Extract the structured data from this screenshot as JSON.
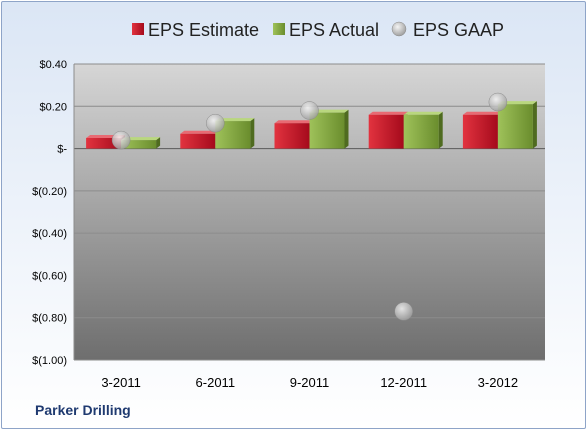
{
  "company": "Parker Drilling",
  "colors": {
    "estimate": "#c8102e",
    "actual": "#7da23c",
    "gaap": "#a8a8a8",
    "plot_top": "#d6d6d6",
    "plot_bottom": "#6e6e6e"
  },
  "chart_data": {
    "type": "bar",
    "categories": [
      "3-2011",
      "6-2011",
      "9-2011",
      "12-2011",
      "3-2012"
    ],
    "series": [
      {
        "name": "EPS Estimate",
        "type": "bar",
        "values": [
          0.05,
          0.07,
          0.12,
          0.16,
          0.16
        ]
      },
      {
        "name": "EPS Actual",
        "type": "bar",
        "values": [
          0.04,
          0.13,
          0.17,
          0.16,
          0.21
        ]
      },
      {
        "name": "EPS GAAP",
        "type": "scatter",
        "values": [
          0.04,
          0.12,
          0.18,
          -0.77,
          0.22
        ]
      }
    ],
    "ylim": [
      -1.0,
      0.4
    ],
    "yticks": [
      {
        "value": 0.4,
        "label": "$0.40"
      },
      {
        "value": 0.2,
        "label": "$0.20"
      },
      {
        "value": 0.0,
        "label": "$-"
      },
      {
        "value": -0.2,
        "label": "$(0.20)"
      },
      {
        "value": -0.4,
        "label": "$(0.40)"
      },
      {
        "value": -0.6,
        "label": "$(0.60)"
      },
      {
        "value": -0.8,
        "label": "$(0.80)"
      },
      {
        "value": -1.0,
        "label": "$(1.00)"
      }
    ],
    "grid": true,
    "legend_position": "top"
  }
}
